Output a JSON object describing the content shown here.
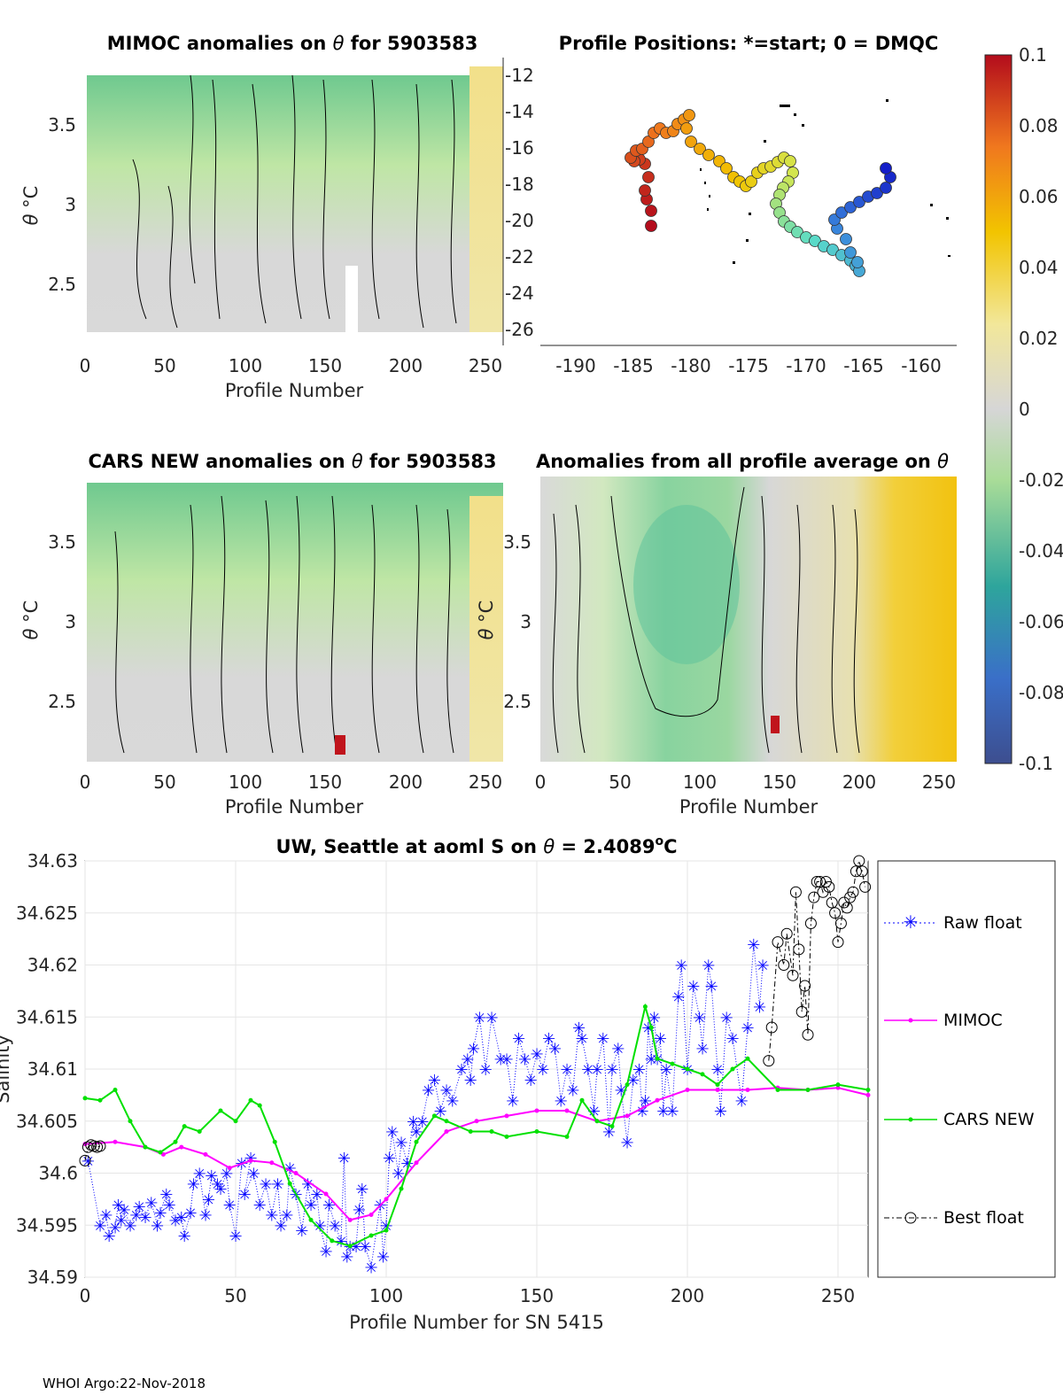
{
  "panels": {
    "p1": {
      "title_a": "MIMOC anomalies on",
      "title_b": "for 5903583",
      "theta": "θ",
      "xlabel": "Profile Number",
      "xticks": [
        "0",
        "50",
        "100",
        "150",
        "200",
        "250"
      ],
      "yticks": [
        "3.5",
        "3",
        "2.5"
      ],
      "ylabel_sym": "θ",
      "ylabel_unit": "°C"
    },
    "p2": {
      "title": "Profile Positions: *=start; 0 = DMQC",
      "xticks": [
        "-190",
        "-185",
        "-180",
        "-175",
        "-170",
        "-165",
        "-160"
      ],
      "yticks": [
        "-12",
        "-14",
        "-16",
        "-18",
        "-20",
        "-22",
        "-24",
        "-26"
      ]
    },
    "p3": {
      "title_a": "CARS NEW anomalies on",
      "title_b": "for 5903583",
      "theta": "θ",
      "xlabel": "Profile Number",
      "xticks": [
        "0",
        "50",
        "100",
        "150",
        "200",
        "250"
      ],
      "yticks": [
        "3.5",
        "3",
        "2.5"
      ],
      "ylabel_sym": "θ",
      "ylabel_unit": "°C"
    },
    "p4": {
      "title_a": "Anomalies from all profile average on",
      "theta": "θ",
      "xlabel": "Profile Number",
      "xticks": [
        "0",
        "50",
        "100",
        "150",
        "200",
        "250"
      ],
      "yticks": [
        "3.5",
        "3",
        "2.5"
      ],
      "ylabel_sym": "θ",
      "ylabel_unit": "°C"
    }
  },
  "colorbar": {
    "ticks": [
      "0.1",
      "0.08",
      "0.06",
      "0.04",
      "0.02",
      "0",
      "-0.02",
      "-0.04",
      "-0.06",
      "-0.08",
      "-0.1"
    ]
  },
  "chart_data": {
    "type": "line",
    "title": "UW, Seattle at aoml S on θ = 2.4089°C",
    "title_a": "UW, Seattle at aoml S on",
    "title_theta": "θ",
    "title_b": "= 2.4089",
    "title_deg": "o",
    "title_c": "C",
    "xlabel": "Profile Number for SN 5415",
    "ylabel": "Salinity",
    "xlim": [
      0,
      260
    ],
    "ylim": [
      34.59,
      34.63
    ],
    "xticks": [
      "0",
      "50",
      "100",
      "150",
      "200",
      "250"
    ],
    "yticks": [
      "34.63",
      "34.625",
      "34.62",
      "34.615",
      "34.61",
      "34.605",
      "34.6",
      "34.595",
      "34.59"
    ],
    "legend": [
      "Raw float",
      "MIMOC",
      "CARS NEW",
      "Best float"
    ],
    "colors": {
      "raw": "#0000ff",
      "mimoc": "#ff00ff",
      "cars": "#00e000",
      "best": "#000000"
    },
    "series": [
      {
        "name": "Raw float",
        "x": [
          1,
          5,
          7,
          8,
          10,
          11,
          12,
          13,
          15,
          17,
          18,
          20,
          22,
          24,
          25,
          27,
          28,
          30,
          32,
          33,
          35,
          36,
          38,
          40,
          41,
          42,
          44,
          45,
          47,
          48,
          50,
          52,
          55,
          53,
          56,
          58,
          60,
          62,
          64,
          65,
          67,
          68,
          70,
          72,
          74,
          75,
          77,
          78,
          80,
          81,
          83,
          85,
          86,
          87,
          88,
          90,
          91,
          92,
          93,
          95,
          98,
          99,
          100,
          101,
          102,
          104,
          105,
          107,
          109,
          110,
          112,
          114,
          116,
          118,
          120,
          122,
          125,
          127,
          128,
          129,
          131,
          133,
          135,
          138,
          140,
          142,
          144,
          146,
          148,
          150,
          152,
          154,
          156,
          158,
          160,
          162,
          164,
          165,
          167,
          169,
          170,
          172,
          174,
          175,
          177,
          178,
          180,
          182,
          184,
          185,
          186,
          187,
          188,
          189,
          190,
          191,
          192,
          193,
          195,
          197,
          198,
          200,
          202,
          204,
          205,
          207,
          208,
          210,
          211,
          213,
          215,
          218,
          220,
          222,
          224,
          225
        ],
        "y": [
          34.6012,
          34.595,
          34.596,
          34.594,
          34.5948,
          34.597,
          34.5955,
          34.5965,
          34.595,
          34.596,
          34.5968,
          34.5958,
          34.5972,
          34.595,
          34.5962,
          34.598,
          34.597,
          34.5955,
          34.5958,
          34.594,
          34.5962,
          34.599,
          34.6,
          34.596,
          34.5975,
          34.5998,
          34.599,
          34.5985,
          34.6,
          34.597,
          34.594,
          34.601,
          34.6015,
          34.598,
          34.6,
          34.597,
          34.599,
          34.596,
          34.599,
          34.595,
          34.596,
          34.6005,
          34.598,
          34.5945,
          34.599,
          34.597,
          34.598,
          34.595,
          34.5925,
          34.597,
          34.595,
          34.5935,
          34.6015,
          34.592,
          34.593,
          34.593,
          34.5965,
          34.5985,
          34.593,
          34.591,
          34.597,
          34.592,
          34.595,
          34.6015,
          34.604,
          34.6,
          34.603,
          34.601,
          34.605,
          34.604,
          34.605,
          34.608,
          34.609,
          34.606,
          34.608,
          34.607,
          34.61,
          34.611,
          34.609,
          34.612,
          34.615,
          34.61,
          34.615,
          34.611,
          34.611,
          34.607,
          34.613,
          34.611,
          34.609,
          34.6115,
          34.61,
          34.613,
          34.612,
          34.607,
          34.61,
          34.608,
          34.614,
          34.613,
          34.61,
          34.606,
          34.61,
          34.613,
          34.604,
          34.61,
          34.612,
          34.608,
          34.603,
          34.609,
          34.61,
          34.606,
          34.607,
          34.614,
          34.611,
          34.615,
          34.611,
          34.613,
          34.606,
          34.61,
          34.606,
          34.617,
          34.62,
          34.61,
          34.618,
          34.615,
          34.612,
          34.62,
          34.618,
          34.61,
          34.606,
          34.615,
          34.613,
          34.607,
          34.614,
          34.622,
          34.616,
          34.62
        ]
      },
      {
        "name": "MIMOC",
        "x": [
          0,
          10,
          20,
          26,
          32,
          40,
          48,
          55,
          62,
          70,
          80,
          88,
          95,
          100,
          110,
          120,
          130,
          140,
          150,
          160,
          170,
          180,
          190,
          200,
          210,
          220,
          230,
          240,
          250,
          260
        ],
        "y": [
          34.6028,
          34.603,
          34.6025,
          34.6018,
          34.6025,
          34.6018,
          34.6005,
          34.6012,
          34.601,
          34.6,
          34.598,
          34.5955,
          34.596,
          34.5975,
          34.601,
          34.604,
          34.605,
          34.6055,
          34.606,
          34.606,
          34.605,
          34.6055,
          34.607,
          34.608,
          34.608,
          34.608,
          34.6082,
          34.608,
          34.6082,
          34.6075
        ]
      },
      {
        "name": "CARS NEW",
        "x": [
          0,
          5,
          10,
          15,
          20,
          25,
          30,
          33,
          38,
          45,
          50,
          55,
          58,
          63,
          68,
          75,
          82,
          88,
          95,
          100,
          105,
          110,
          116,
          120,
          128,
          135,
          140,
          150,
          160,
          165,
          170,
          175,
          180,
          186,
          188,
          190,
          195,
          200,
          205,
          210,
          215,
          220,
          230,
          240,
          250,
          260
        ],
        "y": [
          34.6072,
          34.607,
          34.608,
          34.605,
          34.6025,
          34.602,
          34.603,
          34.6045,
          34.604,
          34.606,
          34.605,
          34.607,
          34.6065,
          34.603,
          34.599,
          34.5955,
          34.5935,
          34.593,
          34.594,
          34.5945,
          34.5985,
          34.603,
          34.6055,
          34.605,
          34.604,
          34.604,
          34.6035,
          34.604,
          34.6035,
          34.607,
          34.605,
          34.6045,
          34.6085,
          34.616,
          34.614,
          34.611,
          34.6105,
          34.61,
          34.6095,
          34.6085,
          34.61,
          34.611,
          34.608,
          34.608,
          34.6085,
          34.608
        ]
      },
      {
        "name": "Best float",
        "x": [
          0,
          1,
          2,
          3,
          4,
          5,
          227,
          228,
          230,
          232,
          233,
          235,
          236,
          237,
          238,
          239,
          240,
          241,
          242,
          243,
          244,
          245,
          246,
          247,
          248,
          249,
          250,
          251,
          252,
          253,
          254,
          255,
          256,
          257,
          258,
          259
        ],
        "y": [
          34.6012,
          34.6025,
          34.6027,
          34.6026,
          34.6025,
          34.6026,
          34.6108,
          34.614,
          34.6222,
          34.62,
          34.623,
          34.619,
          34.627,
          34.6215,
          34.6155,
          34.618,
          34.6133,
          34.624,
          34.6265,
          34.628,
          34.628,
          34.627,
          34.628,
          34.6275,
          34.626,
          34.625,
          34.6222,
          34.624,
          34.626,
          34.6255,
          34.6265,
          34.627,
          34.629,
          34.63,
          34.629,
          34.6275
        ]
      }
    ]
  },
  "footer": "WHOI Argo:22-Nov-2018"
}
